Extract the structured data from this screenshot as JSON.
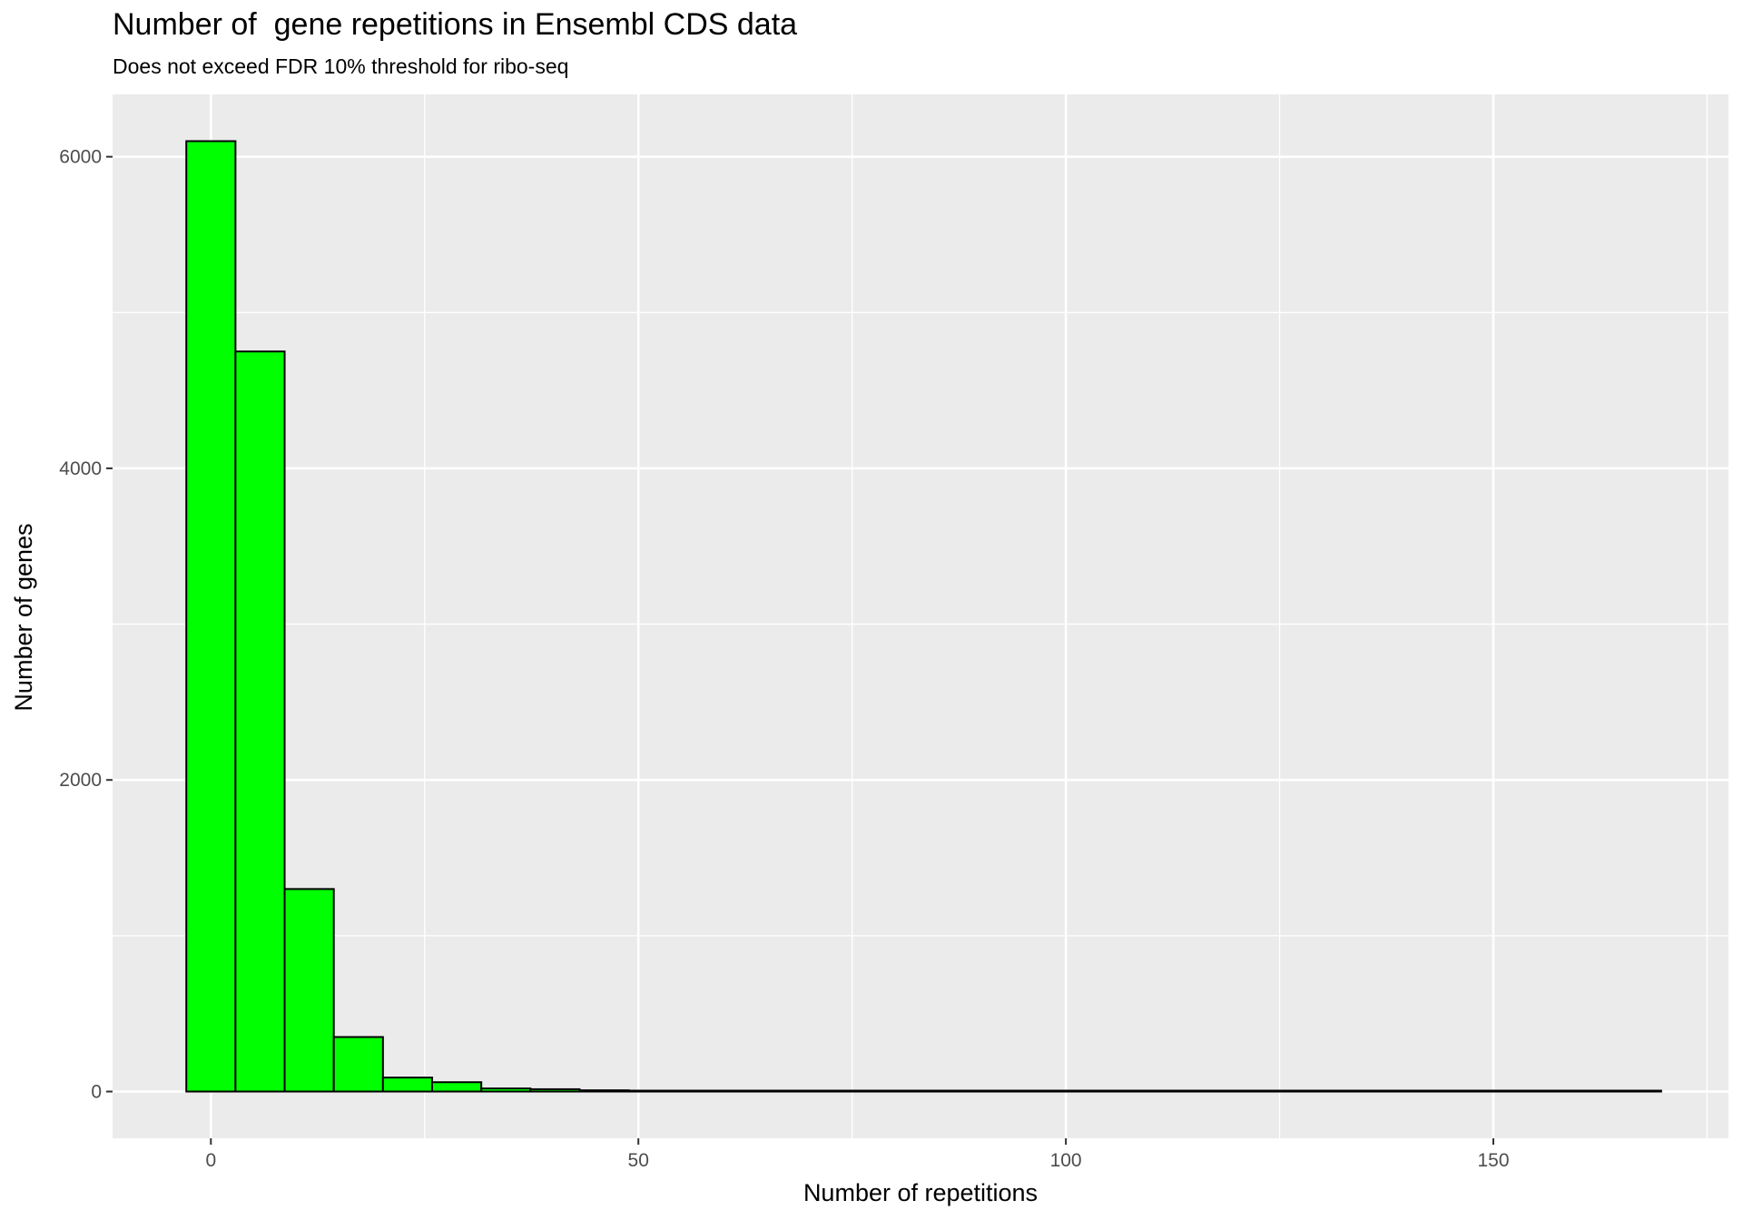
{
  "chart_data": {
    "type": "bar",
    "title": "Number of  gene repetitions in Ensembl CDS data",
    "subtitle": "Does not exceed FDR 10% threshold for ribo-seq",
    "xlabel": "Number of repetitions",
    "ylabel": "Number of genes",
    "xlim": [
      -11.5,
      177.5
    ],
    "ylim": [
      -300,
      6400
    ],
    "x_ticks": [
      0,
      50,
      100,
      150
    ],
    "y_ticks": [
      0,
      2000,
      4000,
      6000
    ],
    "bin_width": 5.75,
    "bin_start": -2.875,
    "values": [
      6100,
      4750,
      1300,
      350,
      90,
      60,
      20,
      15,
      8,
      5,
      3,
      2,
      2,
      3,
      2,
      2,
      2,
      2,
      1,
      1,
      1,
      1,
      1,
      1,
      1,
      1,
      1,
      1,
      1,
      1
    ],
    "fill_color": "#00ff00",
    "outline_color": "#000000",
    "panel_background": "#ebebeb",
    "grid_color": "#ffffff",
    "grid": true,
    "legend": "none"
  }
}
